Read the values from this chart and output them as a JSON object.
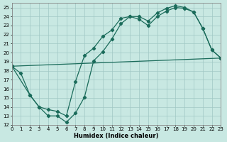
{
  "xlabel": "Humidex (Indice chaleur)",
  "bg_color": "#c8e8e2",
  "grid_color": "#a0c8c4",
  "line_color": "#1a6b5a",
  "xlim": [
    0,
    23
  ],
  "ylim": [
    12,
    25.5
  ],
  "xticks": [
    0,
    1,
    2,
    3,
    4,
    5,
    6,
    7,
    8,
    9,
    10,
    11,
    12,
    13,
    14,
    15,
    16,
    17,
    18,
    19,
    20,
    21,
    22,
    23
  ],
  "yticks": [
    12,
    13,
    14,
    15,
    16,
    17,
    18,
    19,
    20,
    21,
    22,
    23,
    24,
    25
  ],
  "line1_x": [
    0,
    1,
    2,
    3,
    4,
    5,
    6,
    7,
    8,
    9,
    10,
    11,
    12,
    13,
    14,
    15,
    16,
    17,
    18,
    19,
    20,
    21,
    22,
    23
  ],
  "line1_y": [
    18.5,
    17.7,
    15.3,
    14.0,
    13.0,
    13.0,
    12.3,
    13.3,
    15.1,
    19.1,
    20.1,
    21.5,
    23.2,
    24.0,
    24.0,
    23.5,
    24.4,
    24.9,
    25.2,
    25.0,
    24.5,
    22.7,
    20.3,
    19.4
  ],
  "line2_x": [
    0,
    2,
    3,
    4,
    5,
    6,
    7,
    8,
    9,
    10,
    11,
    12,
    13,
    14,
    15,
    16,
    17,
    18,
    19,
    20,
    21,
    22,
    23
  ],
  "line2_y": [
    18.5,
    15.3,
    14.0,
    13.7,
    13.5,
    13.0,
    16.8,
    19.7,
    20.5,
    21.8,
    22.5,
    23.8,
    24.0,
    23.7,
    23.0,
    24.0,
    24.6,
    25.0,
    24.9,
    24.5,
    22.7,
    20.3,
    19.4
  ],
  "line3_x": [
    0,
    23
  ],
  "line3_y": [
    18.5,
    19.4
  ],
  "lw": 0.9,
  "ms": 2.2
}
